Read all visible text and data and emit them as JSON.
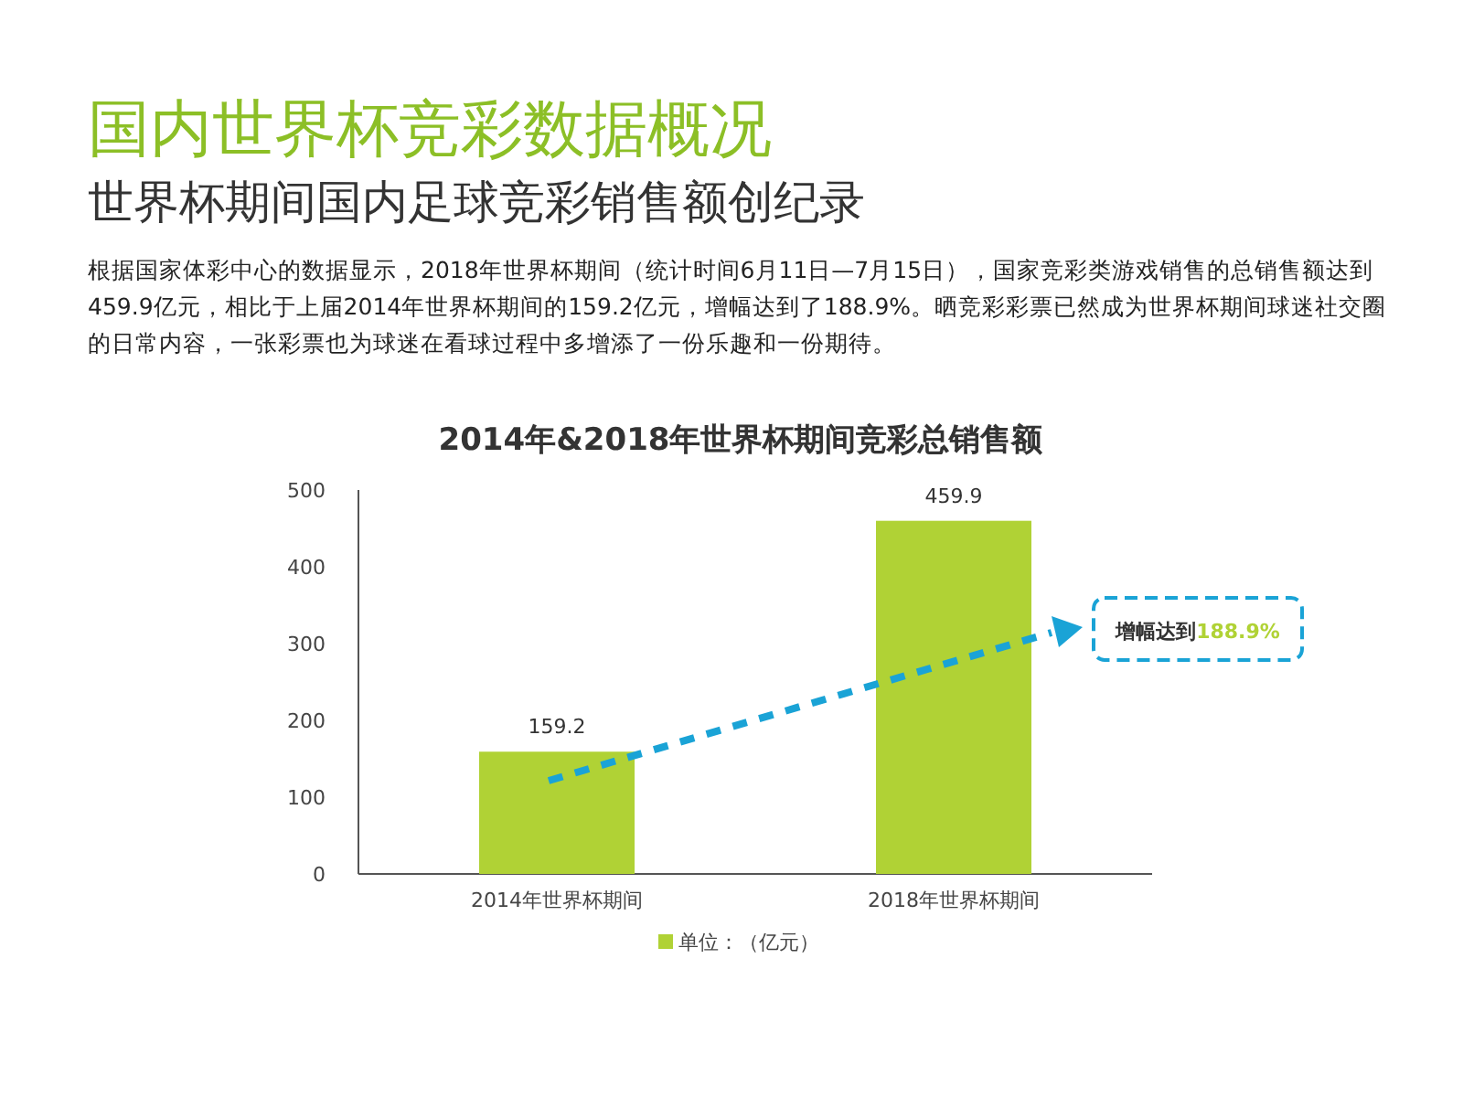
{
  "chart_data": {
    "type": "bar",
    "title": "国内世界杯竞彩数据概况",
    "subtitle": "世界杯期间国内足球竞彩销售额创纪录",
    "annotations": [
      "根据国家体彩中心的数据显示，2018年世界杯期间（统计时间6月11日—7月15日），国家竞彩类游戏销售的总销售额达到459.9亿元，相比于上届2014年世界杯期间的159.2亿元，增幅达到了188.9%。晒竞彩彩票已然成为世界杯期间球迷社交圈的日常内容，一张彩票也为球迷在看球过程中多增添了一份乐趣和一份期待。",
      "2014年&2018年世界杯期间竞彩总销售额",
      "增幅达到188.9%"
    ],
    "categories": [
      "2014年世界杯期间",
      "2018年世界杯期间"
    ],
    "series": [
      {
        "name": "单位：（亿元）",
        "color": "#b0d235",
        "values": [
          159.2,
          459.9
        ]
      }
    ],
    "ylim": [
      0,
      500
    ],
    "yticks": [
      0,
      100,
      200,
      300,
      400,
      500
    ],
    "data_labels": true,
    "grid": false,
    "legend": "bottom"
  }
}
